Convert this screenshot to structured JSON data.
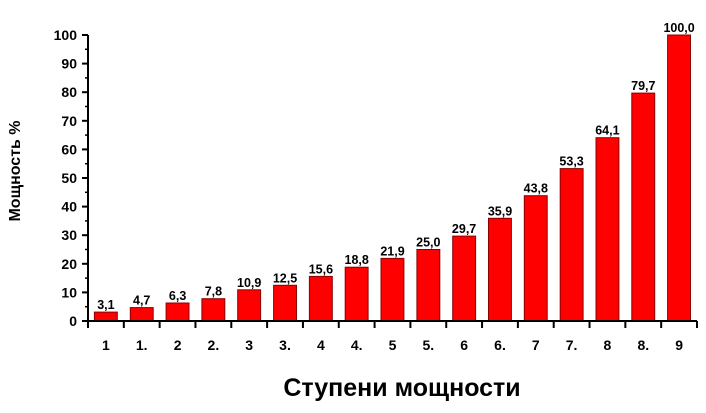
{
  "chart_data": {
    "type": "bar",
    "categories": [
      "1",
      "1.",
      "2",
      "2.",
      "3",
      "3.",
      "4",
      "4.",
      "5",
      "5.",
      "6",
      "6.",
      "7",
      "7.",
      "8",
      "8.",
      "9"
    ],
    "values": [
      3.1,
      4.7,
      6.3,
      7.8,
      10.9,
      12.5,
      15.6,
      18.8,
      21.9,
      25.0,
      29.7,
      35.9,
      43.8,
      53.3,
      64.1,
      79.7,
      100.0
    ],
    "data_labels": [
      "3,1",
      "4,7",
      "6,3",
      "7,8",
      "10,9",
      "12,5",
      "15,6",
      "18,8",
      "21,9",
      "25,0",
      "29,7",
      "35,9",
      "43,8",
      "53,3",
      "64,1",
      "79,7",
      "100,0"
    ],
    "xlabel": "Ступени мощности",
    "ylabel": "Мощность %",
    "ylim": [
      0,
      100
    ],
    "yticks": [
      0,
      10,
      20,
      30,
      40,
      50,
      60,
      70,
      80,
      90,
      100
    ],
    "grid": false,
    "bar_color": "#ff0000",
    "bar_edge_color": "#8b0000"
  }
}
